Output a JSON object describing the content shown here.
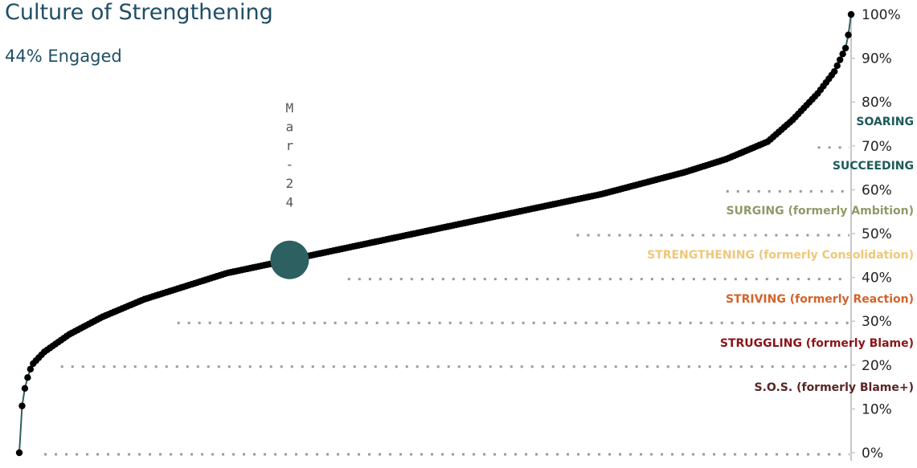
{
  "header": {
    "title": "Culture of Strengthening",
    "subtitle": "44% Engaged"
  },
  "colors": {
    "points": "#000000",
    "curve": "#2d6060",
    "marker": "#2d6060",
    "gridline": "#9a9a9a",
    "axis": "#c8c8c8"
  },
  "chart_data": {
    "type": "scatter",
    "title": "Culture of Strengthening",
    "subtitle": "44% Engaged",
    "xlabel": "",
    "ylabel": "",
    "ylim": [
      0,
      100
    ],
    "y_ticks": [
      "0%",
      "10%",
      "20%",
      "30%",
      "40%",
      "50%",
      "60%",
      "70%",
      "80%",
      "90%",
      "100%"
    ],
    "grid": false,
    "point_count": 300,
    "curve_profile": {
      "x_fraction": [
        0,
        0.002,
        0.004,
        0.008,
        0.015,
        0.03,
        0.06,
        0.1,
        0.15,
        0.2,
        0.25,
        0.3,
        0.4,
        0.5,
        0.6,
        0.7,
        0.8,
        0.85,
        0.9,
        0.93,
        0.96,
        0.98,
        0.995,
        1
      ],
      "y_percent": [
        0,
        8,
        12,
        16,
        20,
        23,
        27,
        31,
        35,
        38,
        41,
        43,
        47,
        51,
        55,
        59,
        64,
        67,
        71,
        76,
        82,
        87,
        93,
        100
      ]
    },
    "highlight": {
      "label": "Mar-24",
      "value_percent": 44
    },
    "zones": [
      {
        "label": "SOARING",
        "threshold_percent": 70,
        "color": "#1e5a5a",
        "line_start_fraction": 0.96
      },
      {
        "label": "SUCCEEDING",
        "threshold_percent": 60,
        "color": "#1e5a5a",
        "line_start_fraction": 0.85
      },
      {
        "label": "SURGING (formerly Ambition)",
        "threshold_percent": 50,
        "color": "#8e9a68",
        "line_start_fraction": 0.67
      },
      {
        "label": "STRENGTHENING (formerly Consolidation)",
        "threshold_percent": 40,
        "color": "#efc777",
        "line_start_fraction": 0.395
      },
      {
        "label": "STRIVING (formerly Reaction)",
        "threshold_percent": 30,
        "color": "#d4632b",
        "line_start_fraction": 0.19
      },
      {
        "label": "STRUGGLING (formerly Blame)",
        "threshold_percent": 20,
        "color": "#8b1418",
        "line_start_fraction": 0.05
      },
      {
        "label": "S.O.S. (formerly Blame+)",
        "threshold_percent": 0,
        "color": "#5a2424",
        "line_start_fraction": 0.03
      }
    ]
  }
}
